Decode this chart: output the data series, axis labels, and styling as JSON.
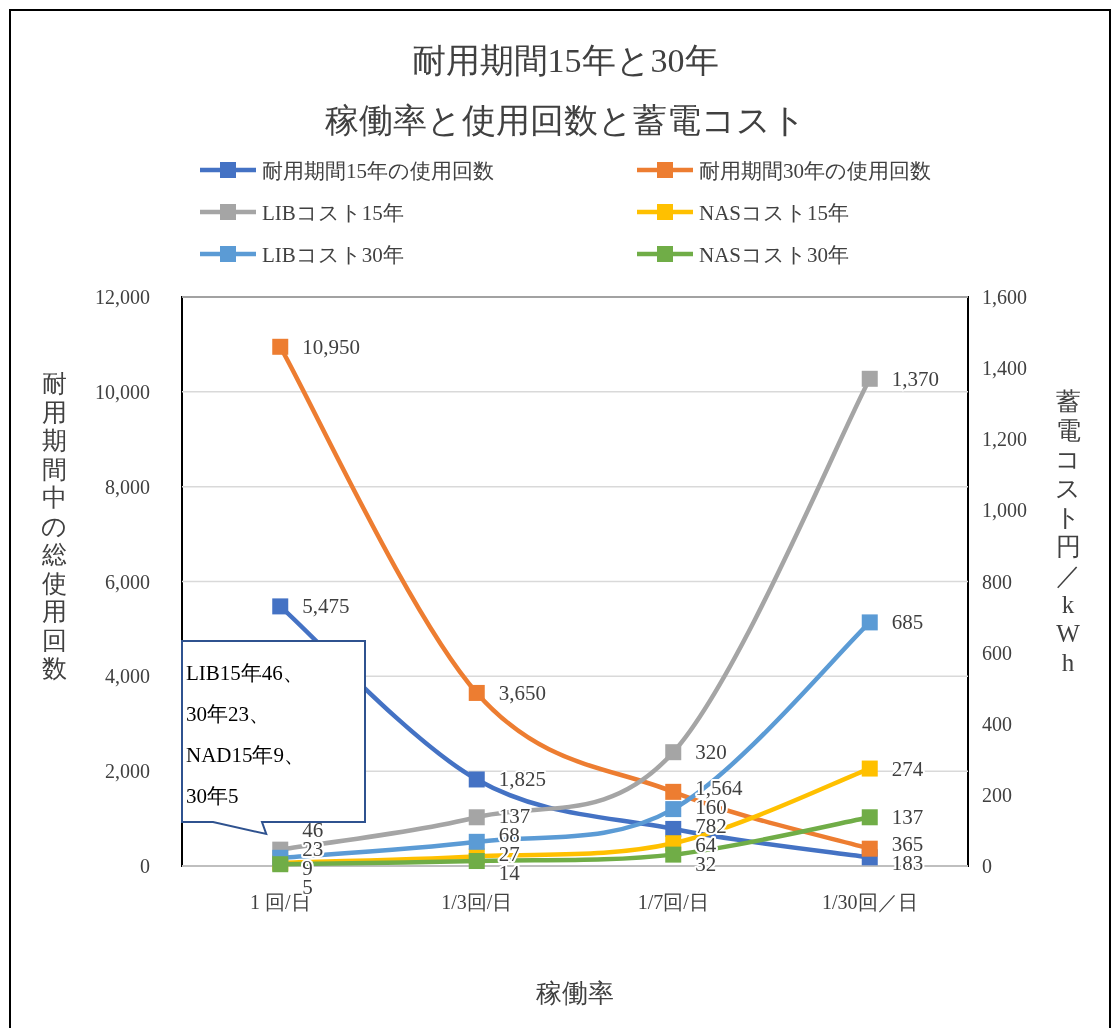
{
  "chart_data": {
    "type": "line",
    "title": "耐用期間15年と30年",
    "subtitle": "稼働率と使用回数と蓄電コスト",
    "xlabel": "稼働率",
    "ylabel": "耐用期間中の総使用回数",
    "y2label": "蓄電コスト円／kWh",
    "categories": [
      "1 回/日",
      "1/3回/日",
      "1/7回/日",
      "1/30回／日"
    ],
    "series": [
      {
        "name": "耐用期間15年の使用回数",
        "color": "#4472c4",
        "values": [
          5475,
          1825,
          782,
          183
        ],
        "value_labels": [
          "5,475",
          "1,825",
          "782",
          "183"
        ]
      },
      {
        "name": "耐用期間30年の使用回数",
        "color": "#ed7d31",
        "values": [
          10950,
          3650,
          1564,
          365
        ],
        "value_labels": [
          "10,950",
          "3,650",
          "1,564",
          "365"
        ]
      },
      {
        "name": "LIBコスト15年",
        "color": "#a5a5a5",
        "values": [
          46,
          137,
          320,
          1370
        ],
        "value_labels": [
          "46",
          "137",
          "320",
          "1,370"
        ],
        "axis": "y2"
      },
      {
        "name": "NASコスト15年",
        "color": "#ffc000",
        "values": [
          9,
          27,
          64,
          274
        ],
        "value_labels": [
          "9",
          "27",
          "64",
          "274"
        ],
        "axis": "y2"
      },
      {
        "name": "LIBコスト30年",
        "color": "#5b9bd5",
        "values": [
          23,
          68,
          160,
          685
        ],
        "value_labels": [
          "23",
          "68",
          "160",
          "685"
        ],
        "axis": "y2"
      },
      {
        "name": "NASコスト30年",
        "color": "#70ad47",
        "values": [
          5,
          14,
          32,
          137
        ],
        "value_labels": [
          "5",
          "14",
          "32",
          "137"
        ],
        "axis": "y2"
      }
    ],
    "ylim": [
      0,
      12000
    ],
    "yticks": [
      {
        "value": 0,
        "label": "0"
      },
      {
        "value": 2000,
        "label": "2,000"
      },
      {
        "value": 4000,
        "label": "4,000"
      },
      {
        "value": 6000,
        "label": "6,000"
      },
      {
        "value": 8000,
        "label": "8,000"
      },
      {
        "value": 10000,
        "label": "10,000"
      },
      {
        "value": 12000,
        "label": "12,000"
      }
    ],
    "y2lim": [
      0,
      1600
    ],
    "y2ticks": [
      {
        "value": 0,
        "label": "0"
      },
      {
        "value": 200,
        "label": "200"
      },
      {
        "value": 400,
        "label": "400"
      },
      {
        "value": 600,
        "label": "600"
      },
      {
        "value": 800,
        "label": "800"
      },
      {
        "value": 1000,
        "label": "1,000"
      },
      {
        "value": 1200,
        "label": "1,200"
      },
      {
        "value": 1400,
        "label": "1,400"
      },
      {
        "value": 1600,
        "label": "1,600"
      }
    ],
    "grid": "y",
    "legend": "top",
    "marker": "square",
    "line_style": "solid",
    "annotations": [
      "LIB15年46、30年23、NAD15年9、30年5"
    ]
  }
}
